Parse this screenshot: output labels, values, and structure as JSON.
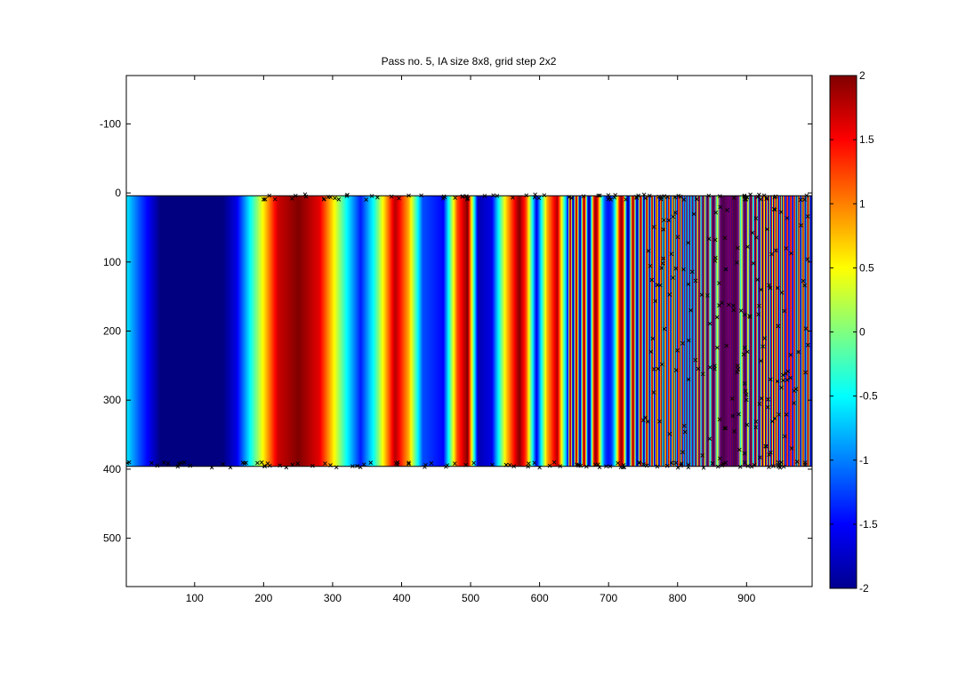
{
  "chart_data": {
    "type": "heatmap",
    "title": "Pass no. 5, IA size 8x8, grid step 2x2",
    "xlabel": "",
    "ylabel": "",
    "xlim": [
      1,
      995
    ],
    "ylim": [
      -170,
      570
    ],
    "y_reversed": true,
    "x_ticks": [
      "100",
      "200",
      "300",
      "400",
      "500",
      "600",
      "700",
      "800",
      "900"
    ],
    "x_tick_values": [
      100,
      200,
      300,
      400,
      500,
      600,
      700,
      800,
      900
    ],
    "y_ticks": [
      "-100",
      "0",
      "100",
      "200",
      "300",
      "400",
      "500"
    ],
    "y_tick_values": [
      -100,
      0,
      100,
      200,
      300,
      400,
      500
    ],
    "field_extent": {
      "x": [
        1,
        995
      ],
      "y": [
        4,
        396
      ]
    },
    "field_description": "chirped vertical stripes: color value varies along x with increasing spatial frequency, constant along y",
    "field_profile": {
      "x": [
        1,
        20,
        50,
        100,
        140,
        160,
        180,
        200,
        220,
        250,
        280,
        300,
        320,
        340,
        360,
        390,
        410,
        430,
        460,
        480,
        495,
        510,
        530,
        550,
        570,
        580,
        595,
        610,
        625,
        640
      ],
      "value": [
        -0.6,
        -1.2,
        -2,
        -2,
        -2,
        -1.6,
        -0.5,
        0.6,
        1.7,
        2,
        1.6,
        0.6,
        -0.5,
        -1.4,
        -0.4,
        1.8,
        0.8,
        -1.2,
        -1.5,
        1.2,
        2,
        -1.8,
        -1.6,
        0.6,
        2,
        1.2,
        -1.6,
        0.8,
        1.8,
        -1.3
      ]
    },
    "colorbar": {
      "colormap": "jet",
      "range": [
        -2,
        2
      ],
      "ticks": [
        "2",
        "1.5",
        "1",
        "0.5",
        "0",
        "-0.5",
        "-1",
        "-1.5",
        "-2"
      ],
      "tick_values": [
        2,
        1.5,
        1,
        0.5,
        0,
        -0.5,
        -1,
        -1.5,
        -2
      ]
    },
    "outlier_markers": {
      "symbol": "x",
      "color": "#000000",
      "note": "black x markers along the top and bottom field edges and scattered in the high-frequency region beyond x≈750"
    },
    "grid": false
  }
}
